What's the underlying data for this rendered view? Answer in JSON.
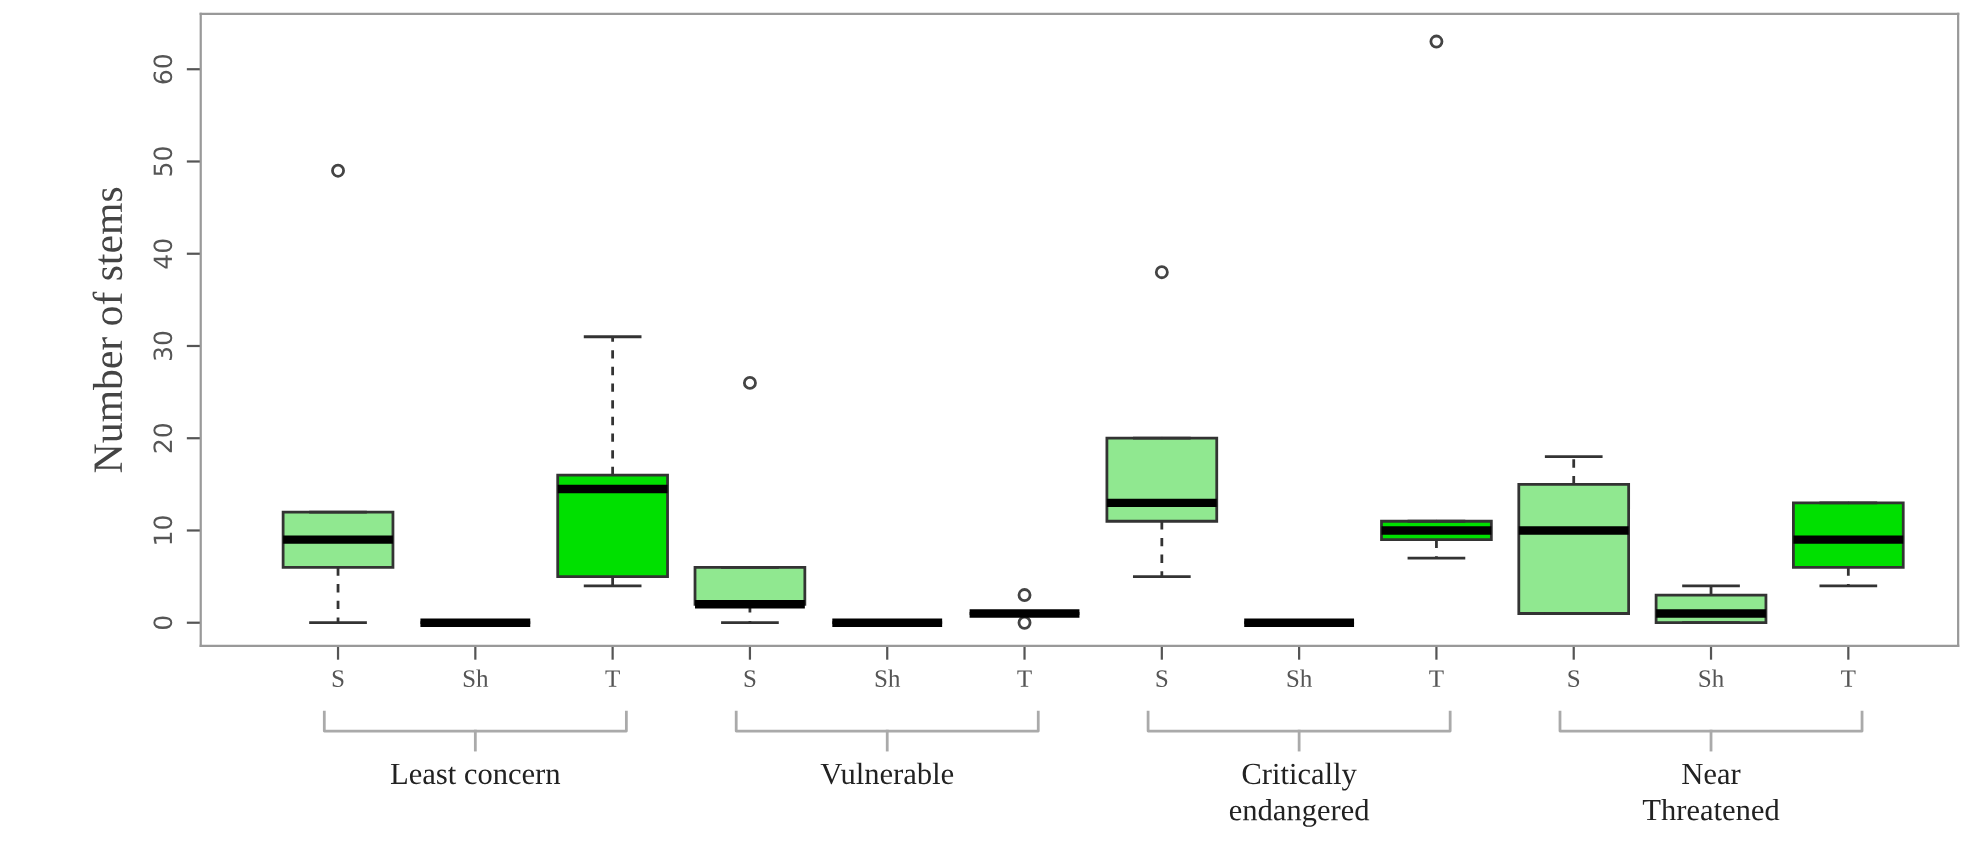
{
  "chart_data": {
    "type": "box",
    "ylabel": "Number of stems",
    "categories": [
      "S",
      "Sh",
      "T",
      "S",
      "Sh",
      "T",
      "S",
      "Sh",
      "T",
      "S",
      "Sh",
      "T"
    ],
    "colors": [
      "#90e890",
      "#333333",
      "#00e000",
      "#90e890",
      "#333333",
      "#333333",
      "#90e890",
      "#333333",
      "#00e000",
      "#90e890",
      "#90e890",
      "#00e000"
    ],
    "boxes": [
      {
        "low": 0,
        "q1": 6,
        "median": 9,
        "q3": 12,
        "high": 12,
        "outliers": [
          49
        ]
      },
      {
        "low": 0,
        "q1": 0,
        "median": 0,
        "q3": 0,
        "high": 0
      },
      {
        "low": 4,
        "q1": 5,
        "median": 14.5,
        "q3": 16,
        "high": 31
      },
      {
        "low": 0,
        "q1": 2,
        "median": 2,
        "q3": 6,
        "high": 6,
        "outliers": [
          26
        ]
      },
      {
        "low": 0,
        "q1": 0,
        "median": 0,
        "q3": 0,
        "high": 0
      },
      {
        "low": 1,
        "q1": 1,
        "median": 1,
        "q3": 1,
        "high": 1,
        "outliers": [
          3,
          0
        ]
      },
      {
        "low": 5,
        "q1": 11,
        "median": 13,
        "q3": 20,
        "high": 20,
        "outliers": [
          38
        ]
      },
      {
        "low": 0,
        "q1": 0,
        "median": 0,
        "q3": 0,
        "high": 0
      },
      {
        "low": 7,
        "q1": 9,
        "median": 10,
        "q3": 11,
        "high": 11,
        "outliers": [
          63
        ]
      },
      {
        "low": 1,
        "q1": 1,
        "median": 10,
        "q3": 15,
        "high": 18
      },
      {
        "low": 0,
        "q1": 0,
        "median": 1,
        "q3": 3,
        "high": 4
      },
      {
        "low": 4,
        "q1": 6,
        "median": 9,
        "q3": 13,
        "high": 13
      }
    ],
    "ylim": [
      -2.5,
      66
    ],
    "yticks": [
      0,
      10,
      20,
      30,
      40,
      50,
      60
    ],
    "grid": false,
    "annotations": [
      "Least concern",
      "Vulnerable",
      "Critically\nendangered",
      "Near\nThreatened"
    ]
  }
}
